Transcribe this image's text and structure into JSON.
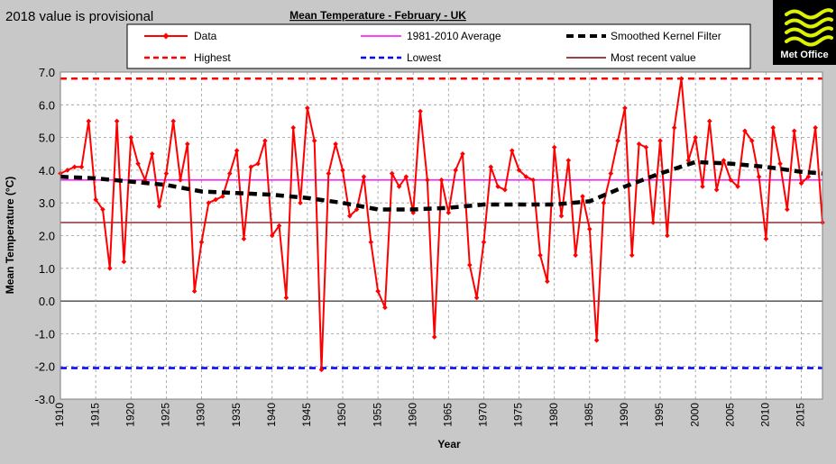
{
  "note": "2018 value is provisional",
  "logo": {
    "text": "Met Office",
    "background": "#000000",
    "stripe_color": "#ddf200"
  },
  "colors": {
    "background": "#c8c8c8",
    "plot_background": "#ffffff",
    "data": "#ff0000",
    "average": "#ff00ff",
    "smoothed": "#000000",
    "highest": "#ff0000",
    "lowest": "#0000ff",
    "most_recent": "#800000"
  },
  "chart_data": {
    "type": "line",
    "title": "Mean Temperature - February - UK",
    "xlabel": "Year",
    "ylabel": "Mean Temperature (°C)",
    "xlim": [
      1910,
      2018
    ],
    "ylim": [
      -3.0,
      7.0
    ],
    "x_ticks": [
      "1910",
      "1915",
      "1920",
      "1925",
      "1930",
      "1935",
      "1940",
      "1945",
      "1950",
      "1955",
      "1960",
      "1965",
      "1970",
      "1975",
      "1980",
      "1985",
      "1990",
      "1995",
      "2000",
      "2005",
      "2010",
      "2015"
    ],
    "y_ticks": [
      "7.0",
      "6.0",
      "5.0",
      "4.0",
      "3.0",
      "2.0",
      "1.0",
      "0.0",
      "-1.0",
      "-2.0",
      "-3.0"
    ],
    "grid": true,
    "legend": {
      "position": "top",
      "entries": [
        "Data",
        "1981-2010 Average",
        "Smoothed Kernel Filter",
        "Highest",
        "Lowest",
        "Most recent value"
      ]
    },
    "series": [
      {
        "name": "Data",
        "x_start": 1910,
        "values": [
          3.9,
          4.0,
          4.1,
          4.1,
          5.5,
          3.1,
          2.8,
          1.0,
          5.5,
          1.2,
          5.0,
          4.2,
          3.7,
          4.5,
          2.9,
          3.9,
          5.5,
          3.7,
          4.8,
          0.3,
          1.8,
          3.0,
          3.1,
          3.2,
          3.9,
          4.6,
          1.9,
          4.1,
          4.2,
          4.9,
          2.0,
          2.3,
          0.1,
          5.3,
          3.0,
          5.9,
          4.9,
          -2.1,
          3.9,
          4.8,
          4.0,
          2.6,
          2.8,
          3.8,
          1.8,
          0.3,
          -0.2,
          3.9,
          3.5,
          3.8,
          2.7,
          5.8,
          3.7,
          -1.1,
          3.7,
          2.7,
          4.0,
          4.5,
          1.1,
          0.1,
          1.8,
          4.1,
          3.5,
          3.4,
          4.6,
          4.0,
          3.8,
          3.7,
          1.4,
          0.6,
          4.7,
          2.6,
          4.3,
          1.4,
          3.2,
          2.2,
          -1.2,
          3.0,
          3.9,
          4.9,
          5.9,
          1.4,
          4.8,
          4.7,
          2.4,
          4.9,
          2.0,
          5.3,
          6.8,
          4.3,
          5.0,
          3.5,
          5.5,
          3.4,
          4.3,
          3.7,
          3.5,
          5.2,
          4.9,
          3.8,
          1.9,
          5.3,
          4.2,
          2.8,
          5.2,
          3.6,
          3.8,
          5.3,
          2.4
        ]
      },
      {
        "name": "1981-2010 Average",
        "value": 3.7
      },
      {
        "name": "Smoothed Kernel Filter",
        "x": [
          1910,
          1915,
          1920,
          1925,
          1930,
          1935,
          1940,
          1945,
          1950,
          1955,
          1960,
          1965,
          1970,
          1975,
          1980,
          1985,
          1990,
          1995,
          2000,
          2005,
          2010,
          2015,
          2018
        ],
        "values": [
          3.8,
          3.75,
          3.65,
          3.55,
          3.35,
          3.3,
          3.25,
          3.15,
          3.0,
          2.8,
          2.8,
          2.85,
          2.95,
          2.95,
          2.95,
          3.05,
          3.5,
          3.9,
          4.25,
          4.2,
          4.1,
          3.95,
          3.9
        ]
      },
      {
        "name": "Highest",
        "value": 6.8
      },
      {
        "name": "Lowest",
        "value": -2.05
      },
      {
        "name": "Most recent value",
        "value": 2.4
      }
    ]
  }
}
